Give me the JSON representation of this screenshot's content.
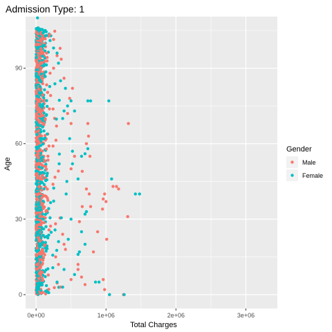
{
  "chart_data": {
    "type": "scatter",
    "title": "Admission Type: 1",
    "xlabel": "Total Charges",
    "ylabel": "Age",
    "xlim": [
      -150000,
      3450000
    ],
    "ylim": [
      -5.5,
      110.5
    ],
    "x_ticks": [
      0,
      1000000,
      2000000,
      3000000
    ],
    "x_tick_labels": [
      "0e+00",
      "1e+06",
      "2e+06",
      "3e+06"
    ],
    "y_ticks": [
      0,
      30,
      60,
      90
    ],
    "y_tick_labels": [
      "0",
      "30",
      "60",
      "90"
    ],
    "legend": {
      "title": "Gender",
      "placement": "right",
      "entries": [
        {
          "label": "Male",
          "color": "#F8766D"
        },
        {
          "label": "Female",
          "color": "#00BFC4"
        }
      ]
    },
    "series": [
      {
        "name": "Male",
        "color": "#F8766D",
        "points": [
          [
            1320000,
            68
          ],
          [
            1100000,
            43
          ],
          [
            1150000,
            43
          ],
          [
            1180000,
            42
          ],
          [
            980000,
            40
          ],
          [
            960000,
            38
          ],
          [
            1310000,
            31
          ],
          [
            950000,
            34
          ],
          [
            1000000,
            37
          ],
          [
            880000,
            25
          ],
          [
            1010000,
            22
          ],
          [
            820000,
            17
          ],
          [
            960000,
            6
          ],
          [
            980000,
            2
          ],
          [
            1250000,
            0
          ],
          [
            1050000,
            0
          ],
          [
            780000,
            35
          ],
          [
            760000,
            40
          ],
          [
            720000,
            42
          ],
          [
            740000,
            68
          ],
          [
            770000,
            55
          ],
          [
            750000,
            63
          ],
          [
            720000,
            60
          ],
          [
            660000,
            35
          ],
          [
            620000,
            29
          ],
          [
            600000,
            10
          ],
          [
            600000,
            12
          ],
          [
            660000,
            49
          ],
          [
            500000,
            50
          ],
          [
            550000,
            55
          ],
          [
            500000,
            68
          ],
          [
            450000,
            72
          ],
          [
            480000,
            78
          ],
          [
            520000,
            82
          ],
          [
            400000,
            86
          ],
          [
            420000,
            18
          ],
          [
            400000,
            20
          ],
          [
            380000,
            24
          ],
          [
            700000,
            4
          ],
          [
            650000,
            7
          ],
          [
            500000,
            6
          ],
          [
            200000,
            88
          ],
          [
            250000,
            90
          ],
          [
            300000,
            95
          ],
          [
            280000,
            15
          ],
          [
            320000,
            12
          ],
          [
            150000,
            96
          ],
          [
            350000,
            3
          ]
        ]
      },
      {
        "name": "Female",
        "color": "#00BFC4",
        "points": [
          [
            20000,
            110
          ],
          [
            30000,
            106
          ],
          [
            1040000,
            77
          ],
          [
            1480000,
            40
          ],
          [
            1420000,
            40
          ],
          [
            1080000,
            46
          ],
          [
            1050000,
            0
          ],
          [
            1260000,
            0
          ],
          [
            850000,
            5
          ],
          [
            900000,
            5
          ],
          [
            780000,
            77
          ],
          [
            740000,
            77
          ],
          [
            740000,
            58
          ],
          [
            700000,
            56
          ],
          [
            650000,
            55
          ],
          [
            720000,
            33
          ],
          [
            700000,
            32
          ],
          [
            650000,
            25
          ],
          [
            700000,
            20
          ],
          [
            600000,
            16
          ],
          [
            620000,
            17
          ],
          [
            450000,
            75
          ],
          [
            400000,
            73
          ],
          [
            420000,
            82
          ],
          [
            500000,
            77
          ],
          [
            550000,
            73
          ],
          [
            300000,
            96
          ],
          [
            320000,
            92
          ],
          [
            350000,
            85
          ],
          [
            380000,
            70
          ],
          [
            330000,
            52
          ],
          [
            250000,
            98
          ],
          [
            200000,
            101
          ],
          [
            150000,
            103
          ],
          [
            100000,
            104
          ],
          [
            120000,
            99
          ],
          [
            480000,
            62
          ],
          [
            520000,
            57
          ],
          [
            500000,
            30
          ],
          [
            460000,
            22
          ],
          [
            400000,
            10
          ],
          [
            300000,
            5
          ],
          [
            550000,
            8
          ],
          [
            430000,
            40
          ],
          [
            440000,
            45
          ],
          [
            600000,
            46
          ],
          [
            380000,
            3
          ],
          [
            520000,
            52
          ]
        ]
      }
    ]
  }
}
